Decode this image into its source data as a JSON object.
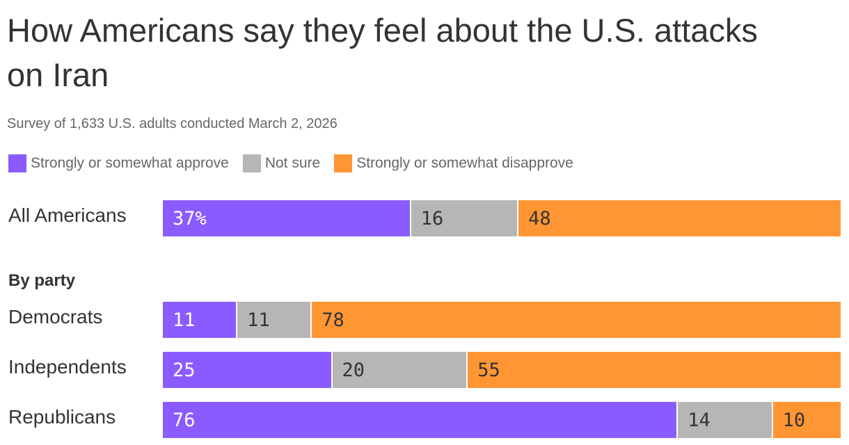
{
  "chart_data": {
    "type": "bar",
    "orientation": "horizontal",
    "stacked": true,
    "title": "How Americans say they feel about the U.S. attacks on Iran",
    "subtitle": "Survey of 1,633 U.S. adults conducted March 2, 2026",
    "legend_position": "top-left",
    "series": [
      {
        "name": "Strongly or somewhat approve",
        "color": "#8a5cff",
        "label_color": "#ffffff"
      },
      {
        "name": "Not sure",
        "color": "#b6b6b6",
        "label_color": "#333333"
      },
      {
        "name": "Strongly or somewhat disapprove",
        "color": "#ff9533",
        "label_color": "#333333"
      }
    ],
    "group_label": "By party",
    "rows": [
      {
        "category": "All Americans",
        "values": [
          37,
          16,
          48
        ],
        "labels": [
          "37%",
          "16",
          "48"
        ]
      },
      {
        "category": "Democrats",
        "values": [
          11,
          11,
          78
        ],
        "labels": [
          "11",
          "11",
          "78"
        ]
      },
      {
        "category": "Independents",
        "values": [
          25,
          20,
          55
        ],
        "labels": [
          "25",
          "20",
          "55"
        ]
      },
      {
        "category": "Republicans",
        "values": [
          76,
          14,
          10
        ],
        "labels": [
          "76",
          "14",
          "10"
        ]
      }
    ]
  }
}
